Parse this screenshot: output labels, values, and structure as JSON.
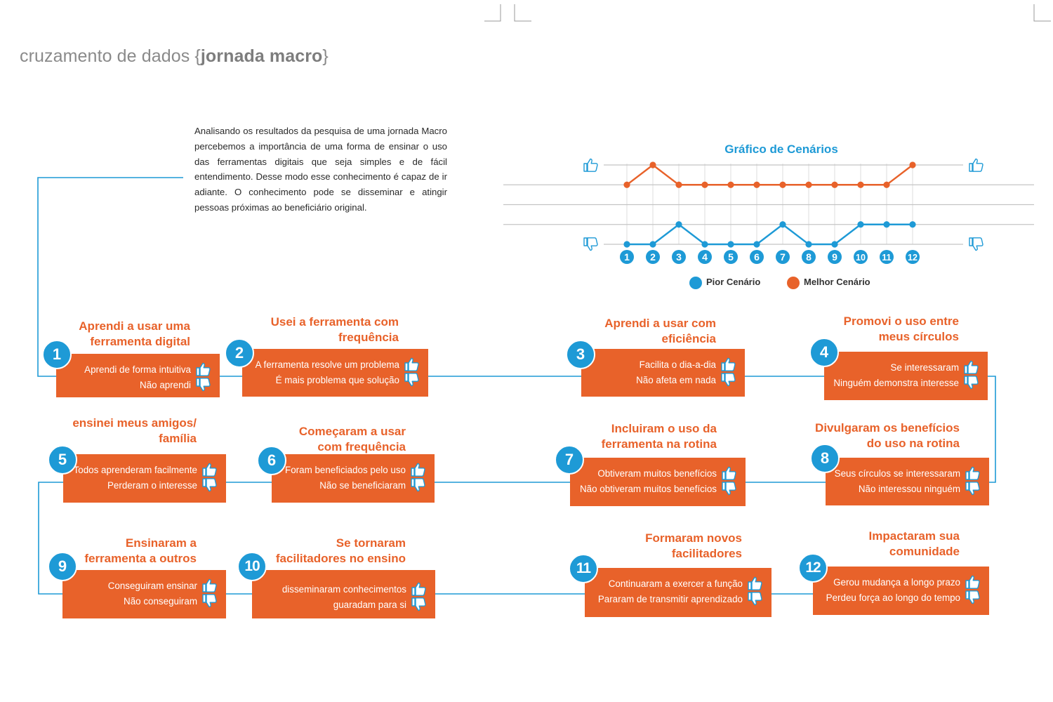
{
  "page_title": {
    "light_prefix": "cruzamento de dados {",
    "bold": "jornada macro",
    "light_suffix": "}"
  },
  "intro_text": "Analisando os resultados da pesquisa de uma jornada Macro percebemos a importância de uma forma de ensinar o uso das ferramentas digitais que seja simples e de fácil entendimento. Desse modo esse conhecimento é capaz de ir adiante. O conhecimento pode se disseminar e atingir pessoas próximas ao beneficiário original.",
  "colors": {
    "accent_orange": "#e8622a",
    "accent_blue": "#1e9ad6",
    "text_gray": "#8a8a8a",
    "grid_gray": "#bdbdbd",
    "box_text": "#ffffff"
  },
  "chart_data": {
    "type": "line",
    "title": "Gráfico de Cenários",
    "categories": [
      "1",
      "2",
      "3",
      "4",
      "5",
      "6",
      "7",
      "8",
      "9",
      "10",
      "11",
      "12"
    ],
    "y_levels": 5,
    "top_icon": "thumbs-up-icon",
    "bottom_icon": "thumbs-down-icon",
    "series": [
      {
        "name": "Pior Cenário",
        "color": "#1e9ad6",
        "values": [
          1,
          1,
          2,
          1,
          1,
          1,
          2,
          1,
          1,
          2,
          2,
          2
        ]
      },
      {
        "name": "Melhor Cenário",
        "color": "#e8622a",
        "values": [
          4,
          5,
          4,
          4,
          4,
          4,
          4,
          4,
          4,
          4,
          4,
          5
        ]
      }
    ],
    "legend_position": "bottom",
    "grid": true
  },
  "steps": [
    {
      "number": "1",
      "title": [
        "Aprendi a usar uma",
        "ferramenta digital"
      ],
      "positive": "Aprendi de forma intuitiva",
      "negative": "Não aprendi"
    },
    {
      "number": "2",
      "title": [
        "Usei a ferramenta com",
        "frequência"
      ],
      "positive": "A ferramenta resolve um problema",
      "negative": "É mais problema que solução"
    },
    {
      "number": "3",
      "title": [
        "Aprendi a usar com",
        "eficiência"
      ],
      "positive": "Facilita o dia-a-dia",
      "negative": "Não afeta em nada"
    },
    {
      "number": "4",
      "title": [
        "Promovi o uso entre",
        "meus círculos"
      ],
      "positive": "Se interessaram",
      "negative": "Ninguém demonstra interesse"
    },
    {
      "number": "5",
      "title": [
        "ensinei meus amigos/",
        "família"
      ],
      "positive": "Todos aprenderam facilmente",
      "negative": "Perderam o interesse"
    },
    {
      "number": "6",
      "title": [
        "Começaram a usar",
        "com frequência"
      ],
      "positive": "Foram beneficiados pelo uso",
      "negative": "Não se beneficiaram"
    },
    {
      "number": "7",
      "title": [
        "Incluiram o uso da",
        "ferramenta na rotina"
      ],
      "positive": "Obtiveram muitos benefícios",
      "negative": "Não obtiveram muitos benefícios"
    },
    {
      "number": "8",
      "title": [
        "Divulgaram os benefícios",
        "do uso na rotina"
      ],
      "positive": "Seus círculos se interessaram",
      "negative": "Não interessou ninguém"
    },
    {
      "number": "9",
      "title": [
        "Ensinaram a",
        "ferramenta a outros"
      ],
      "positive": "Conseguiram ensinar",
      "negative": "Não conseguiram"
    },
    {
      "number": "10",
      "title": [
        "Se tornaram",
        "facilitadores no ensino"
      ],
      "positive": "disseminaram conhecimentos",
      "negative": "guaradam para si"
    },
    {
      "number": "11",
      "title": [
        "Formaram novos",
        "facilitadores"
      ],
      "positive": "Continuaram a exercer a função",
      "negative": "Pararam de transmitir aprendizado"
    },
    {
      "number": "12",
      "title": [
        "Impactaram  sua",
        "comunidade"
      ],
      "positive": "Gerou mudança a longo prazo",
      "negative": "Perdeu força ao longo do tempo"
    }
  ]
}
